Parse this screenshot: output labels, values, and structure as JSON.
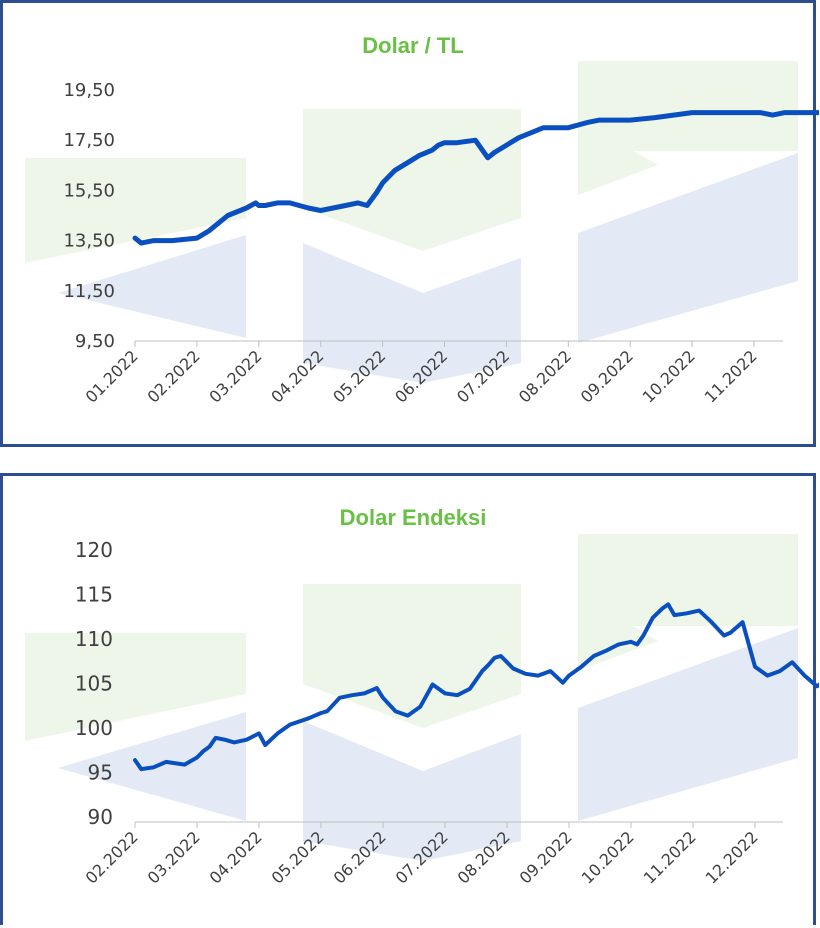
{
  "chart_data": [
    {
      "type": "line",
      "title": "Dolar / TL",
      "xlabel": "",
      "ylabel": "",
      "ylim": [
        9.5,
        19.5
      ],
      "yticks": [
        "19,50",
        "17,50",
        "15,50",
        "13,50",
        "11,50",
        "9,50"
      ],
      "categories": [
        "01.2022",
        "02.2022",
        "03.2022",
        "04.2022",
        "05.2022",
        "06.2022",
        "07.2022",
        "08.2022",
        "09.2022",
        "10.2022",
        "11.2022"
      ],
      "color": "#0a4fc0",
      "series": [
        {
          "x": [
            0,
            0.1,
            0.3,
            0.6,
            1.0,
            1.2,
            1.5,
            1.8,
            1.95,
            2.0,
            2.1,
            2.3,
            2.5,
            2.8,
            3.0,
            3.2,
            3.4,
            3.6,
            3.75,
            3.9,
            4.0,
            4.2,
            4.4,
            4.6,
            4.8,
            4.9,
            5.0,
            5.2,
            5.5,
            5.7,
            5.8,
            6.0,
            6.2,
            6.4,
            6.6,
            7.0,
            7.3,
            7.5,
            7.7,
            8.0,
            8.4,
            8.7,
            9.0,
            9.3,
            9.6,
            9.9,
            10.1,
            10.3,
            10.5,
            10.8,
            11.0,
            11.2,
            11.4
          ],
          "values": [
            13.6,
            13.4,
            13.5,
            13.5,
            13.6,
            13.9,
            14.5,
            14.8,
            15.0,
            14.9,
            14.9,
            15.0,
            15.0,
            14.8,
            14.7,
            14.8,
            14.9,
            15.0,
            14.9,
            15.4,
            15.8,
            16.3,
            16.6,
            16.9,
            17.1,
            17.3,
            17.4,
            17.4,
            17.5,
            16.8,
            17.0,
            17.3,
            17.6,
            17.8,
            18.0,
            18.0,
            18.2,
            18.3,
            18.3,
            18.3,
            18.4,
            18.5,
            18.6,
            18.6,
            18.6,
            18.6,
            18.6,
            18.5,
            18.6,
            18.6,
            18.6,
            18.6,
            18.6
          ]
        }
      ]
    },
    {
      "type": "line",
      "title": "Dolar Endeksi",
      "xlabel": "",
      "ylabel": "",
      "ylim": [
        90,
        120
      ],
      "yticks": [
        "120",
        "115",
        "110",
        "105",
        "100",
        "95",
        "90"
      ],
      "categories": [
        "02.2022",
        "03.2022",
        "04.2022",
        "05.2022",
        "06.2022",
        "07.2022",
        "08.2022",
        "09.2022",
        "10.2022",
        "11.2022",
        "12.2022"
      ],
      "color": "#0a4fc0",
      "series": [
        {
          "x": [
            0,
            0.1,
            0.3,
            0.5,
            0.8,
            1.0,
            1.1,
            1.2,
            1.3,
            1.45,
            1.6,
            1.8,
            2.0,
            2.1,
            2.3,
            2.5,
            2.8,
            3.0,
            3.1,
            3.3,
            3.5,
            3.7,
            3.9,
            4.0,
            4.2,
            4.4,
            4.6,
            4.8,
            5.0,
            5.2,
            5.4,
            5.5,
            5.6,
            5.7,
            5.8,
            5.9,
            6.1,
            6.3,
            6.5,
            6.7,
            6.9,
            7.0,
            7.2,
            7.4,
            7.6,
            7.8,
            8.0,
            8.1,
            8.2,
            8.35,
            8.5,
            8.6,
            8.7,
            8.9,
            9.1,
            9.3,
            9.5,
            9.6,
            9.8,
            10.0,
            10.2,
            10.4,
            10.6,
            10.8,
            11.0,
            11.15,
            11.3
          ],
          "values": [
            96.5,
            95.5,
            95.7,
            96.3,
            96.0,
            96.8,
            97.5,
            98.0,
            99.0,
            98.8,
            98.5,
            98.8,
            99.5,
            98.2,
            99.5,
            100.5,
            101.2,
            101.8,
            102.0,
            103.5,
            103.8,
            104.0,
            104.6,
            103.5,
            102.0,
            101.5,
            102.5,
            105.0,
            104.0,
            103.8,
            104.5,
            105.5,
            106.5,
            107.2,
            108.0,
            108.2,
            106.8,
            106.2,
            106.0,
            106.5,
            105.2,
            106.0,
            107.0,
            108.2,
            108.8,
            109.5,
            109.8,
            109.5,
            110.5,
            112.5,
            113.5,
            114.0,
            112.8,
            113.0,
            113.3,
            112.0,
            110.5,
            110.8,
            112.0,
            107.0,
            106.0,
            106.5,
            107.5,
            106.0,
            104.8,
            105.5,
            104.5
          ]
        }
      ]
    }
  ]
}
